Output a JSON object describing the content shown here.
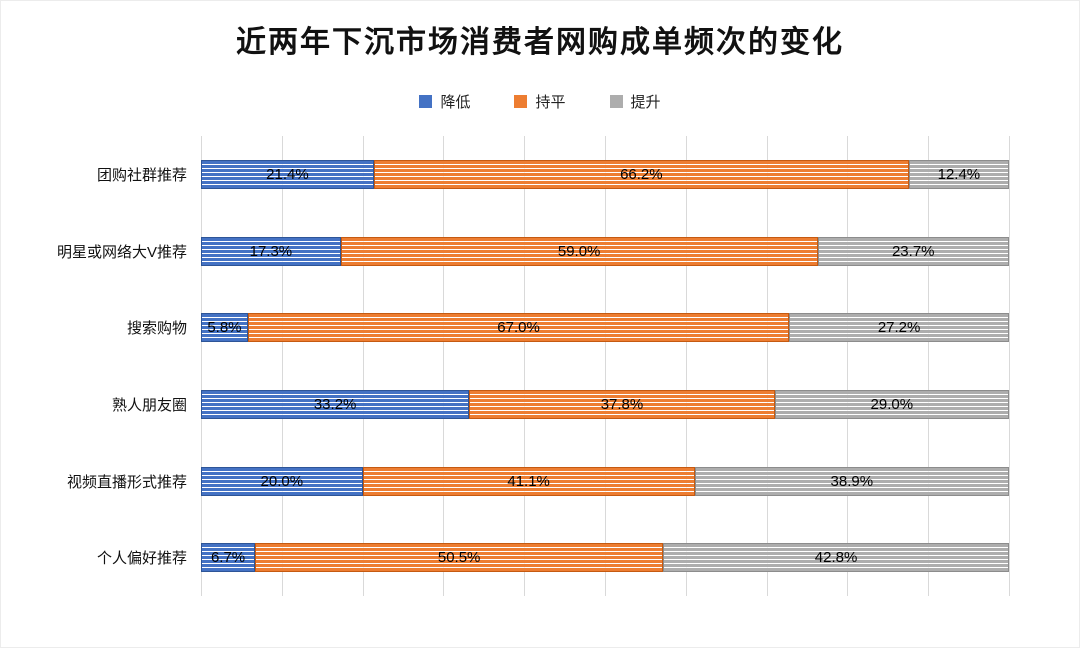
{
  "title": "近两年下沉市场消费者网购成单频次的变化",
  "chart_data": {
    "type": "bar",
    "orientation": "horizontal",
    "stacked": true,
    "title": "近两年下沉市场消费者网购成单频次的变化",
    "categories": [
      "团购社群推荐",
      "明星或网络大V推荐",
      "搜索购物",
      "熟人朋友圈",
      "视频直播形式推荐",
      "个人偏好推荐"
    ],
    "series": [
      {
        "name": "降低",
        "color": "#4472C4",
        "border": "#2E5597",
        "values": [
          21.4,
          17.3,
          5.8,
          33.2,
          20.0,
          6.7
        ]
      },
      {
        "name": "持平",
        "color": "#ED7D31",
        "border": "#C55A11",
        "values": [
          66.2,
          59.0,
          67.0,
          37.8,
          41.1,
          50.5
        ]
      },
      {
        "name": "提升",
        "color": "#ADADAD",
        "border": "#8C8C8C",
        "values": [
          12.4,
          23.7,
          27.2,
          29.0,
          38.9,
          42.8
        ]
      }
    ],
    "xlim": [
      0,
      100
    ],
    "grid": true,
    "grid_step": 10,
    "grid_color": "#d9d9d9",
    "legend_position": "top",
    "value_suffix": "%"
  }
}
